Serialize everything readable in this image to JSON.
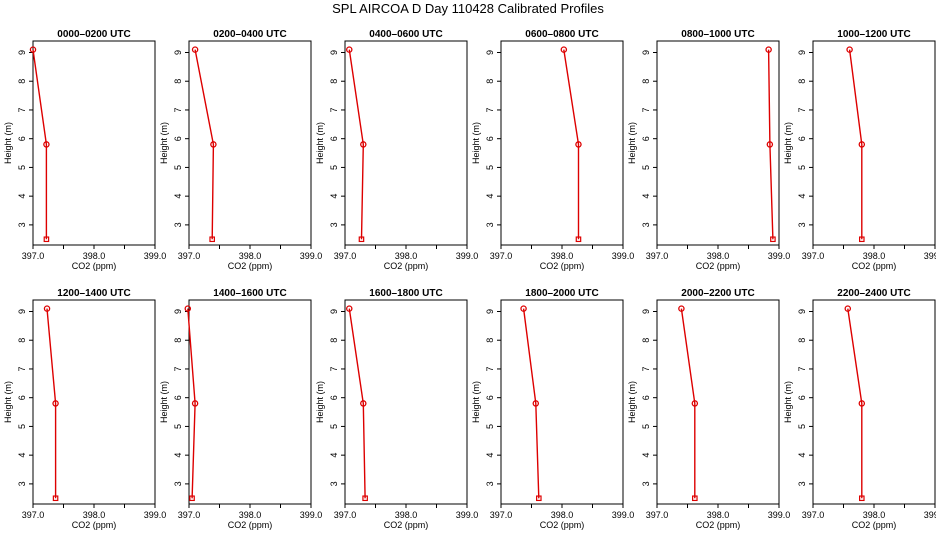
{
  "figure": {
    "title": "SPL AIRCOA D  Day 110428  Calibrated Profiles"
  },
  "colors": {
    "profile": "#dd0000",
    "axes": "#000000",
    "background": "#ffffff"
  },
  "chart_data": [
    {
      "type": "line",
      "title": "0000–0200 UTC",
      "xlabel": "CO2 (ppm)",
      "ylabel": "Height (m)",
      "xlim": [
        397.0,
        399.0
      ],
      "ylim": [
        2.3,
        9.4
      ],
      "x_ticks": [
        "397.0",
        "398.0",
        "399.0"
      ],
      "y_ticks": [
        "3",
        "4",
        "5",
        "6",
        "7",
        "8",
        "9"
      ],
      "series": [
        {
          "x": [
            397.0,
            397.22,
            397.22
          ],
          "y": [
            9.1,
            5.8,
            2.5
          ]
        }
      ]
    },
    {
      "type": "line",
      "title": "0200–0400 UTC",
      "xlabel": "CO2 (ppm)",
      "ylabel": "Height (m)",
      "xlim": [
        397.0,
        399.0
      ],
      "ylim": [
        2.3,
        9.4
      ],
      "x_ticks": [
        "397.0",
        "398.0",
        "399.0"
      ],
      "y_ticks": [
        "3",
        "4",
        "5",
        "6",
        "7",
        "8",
        "9"
      ],
      "series": [
        {
          "x": [
            397.1,
            397.4,
            397.38
          ],
          "y": [
            9.1,
            5.8,
            2.5
          ]
        }
      ]
    },
    {
      "type": "line",
      "title": "0400–0600 UTC",
      "xlabel": "CO2 (ppm)",
      "ylabel": "Height (m)",
      "xlim": [
        397.0,
        399.0
      ],
      "ylim": [
        2.3,
        9.4
      ],
      "x_ticks": [
        "397.0",
        "398.0",
        "399.0"
      ],
      "y_ticks": [
        "3",
        "4",
        "5",
        "6",
        "7",
        "8",
        "9"
      ],
      "series": [
        {
          "x": [
            397.07,
            397.3,
            397.27
          ],
          "y": [
            9.1,
            5.8,
            2.5
          ]
        }
      ]
    },
    {
      "type": "line",
      "title": "0600–0800 UTC",
      "xlabel": "CO2 (ppm)",
      "ylabel": "Height (m)",
      "xlim": [
        397.0,
        399.0
      ],
      "ylim": [
        2.3,
        9.4
      ],
      "x_ticks": [
        "397.0",
        "398.0",
        "399.0"
      ],
      "y_ticks": [
        "3",
        "4",
        "5",
        "6",
        "7",
        "8",
        "9"
      ],
      "series": [
        {
          "x": [
            398.03,
            398.27,
            398.27
          ],
          "y": [
            9.1,
            5.8,
            2.5
          ]
        }
      ]
    },
    {
      "type": "line",
      "title": "0800–1000 UTC",
      "xlabel": "CO2 (ppm)",
      "ylabel": "Height (m)",
      "xlim": [
        397.0,
        399.0
      ],
      "ylim": [
        2.3,
        9.4
      ],
      "x_ticks": [
        "397.0",
        "398.0",
        "399.0"
      ],
      "y_ticks": [
        "3",
        "4",
        "5",
        "6",
        "7",
        "8",
        "9"
      ],
      "series": [
        {
          "x": [
            398.83,
            398.85,
            398.9
          ],
          "y": [
            9.1,
            5.8,
            2.5
          ]
        }
      ]
    },
    {
      "type": "line",
      "title": "1000–1200 UTC",
      "xlabel": "CO2 (ppm)",
      "ylabel": "Height (m)",
      "xlim": [
        397.0,
        399.0
      ],
      "ylim": [
        2.3,
        9.4
      ],
      "x_ticks": [
        "397.0",
        "398.0",
        "399.0"
      ],
      "y_ticks": [
        "3",
        "4",
        "5",
        "6",
        "7",
        "8",
        "9"
      ],
      "series": [
        {
          "x": [
            397.6,
            397.8,
            397.8
          ],
          "y": [
            9.1,
            5.8,
            2.5
          ]
        }
      ]
    },
    {
      "type": "line",
      "title": "1200–1400 UTC",
      "xlabel": "CO2 (ppm)",
      "ylabel": "Height (m)",
      "xlim": [
        397.0,
        399.0
      ],
      "ylim": [
        2.3,
        9.4
      ],
      "x_ticks": [
        "397.0",
        "398.0",
        "399.0"
      ],
      "y_ticks": [
        "3",
        "4",
        "5",
        "6",
        "7",
        "8",
        "9"
      ],
      "series": [
        {
          "x": [
            397.23,
            397.37,
            397.37
          ],
          "y": [
            9.1,
            5.8,
            2.5
          ]
        }
      ]
    },
    {
      "type": "line",
      "title": "1400–1600 UTC",
      "xlabel": "CO2 (ppm)",
      "ylabel": "Height (m)",
      "xlim": [
        397.0,
        399.0
      ],
      "ylim": [
        2.3,
        9.4
      ],
      "x_ticks": [
        "397.0",
        "398.0",
        "399.0"
      ],
      "y_ticks": [
        "3",
        "4",
        "5",
        "6",
        "7",
        "8",
        "9"
      ],
      "series": [
        {
          "x": [
            396.98,
            397.1,
            397.05
          ],
          "y": [
            9.1,
            5.8,
            2.5
          ]
        }
      ]
    },
    {
      "type": "line",
      "title": "1600–1800 UTC",
      "xlabel": "CO2 (ppm)",
      "ylabel": "Height (m)",
      "xlim": [
        397.0,
        399.0
      ],
      "ylim": [
        2.3,
        9.4
      ],
      "x_ticks": [
        "397.0",
        "398.0",
        "399.0"
      ],
      "y_ticks": [
        "3",
        "4",
        "5",
        "6",
        "7",
        "8",
        "9"
      ],
      "series": [
        {
          "x": [
            397.07,
            397.3,
            397.33
          ],
          "y": [
            9.1,
            5.8,
            2.5
          ]
        }
      ]
    },
    {
      "type": "line",
      "title": "1800–2000 UTC",
      "xlabel": "CO2 (ppm)",
      "ylabel": "Height (m)",
      "xlim": [
        397.0,
        399.0
      ],
      "ylim": [
        2.3,
        9.4
      ],
      "x_ticks": [
        "397.0",
        "398.0",
        "399.0"
      ],
      "y_ticks": [
        "3",
        "4",
        "5",
        "6",
        "7",
        "8",
        "9"
      ],
      "series": [
        {
          "x": [
            397.37,
            397.57,
            397.62
          ],
          "y": [
            9.1,
            5.8,
            2.5
          ]
        }
      ]
    },
    {
      "type": "line",
      "title": "2000–2200 UTC",
      "xlabel": "CO2 (ppm)",
      "ylabel": "Height (m)",
      "xlim": [
        397.0,
        399.0
      ],
      "ylim": [
        2.3,
        9.4
      ],
      "x_ticks": [
        "397.0",
        "398.0",
        "399.0"
      ],
      "y_ticks": [
        "3",
        "4",
        "5",
        "6",
        "7",
        "8",
        "9"
      ],
      "series": [
        {
          "x": [
            397.4,
            397.62,
            397.62
          ],
          "y": [
            9.1,
            5.8,
            2.5
          ]
        }
      ]
    },
    {
      "type": "line",
      "title": "2200–2400 UTC",
      "xlabel": "CO2 (ppm)",
      "ylabel": "Height (m)",
      "xlim": [
        397.0,
        399.0
      ],
      "ylim": [
        2.3,
        9.4
      ],
      "x_ticks": [
        "397.0",
        "398.0",
        "399.0"
      ],
      "y_ticks": [
        "3",
        "4",
        "5",
        "6",
        "7",
        "8",
        "9"
      ],
      "series": [
        {
          "x": [
            397.57,
            397.8,
            397.8
          ],
          "y": [
            9.1,
            5.8,
            2.5
          ]
        }
      ]
    }
  ]
}
